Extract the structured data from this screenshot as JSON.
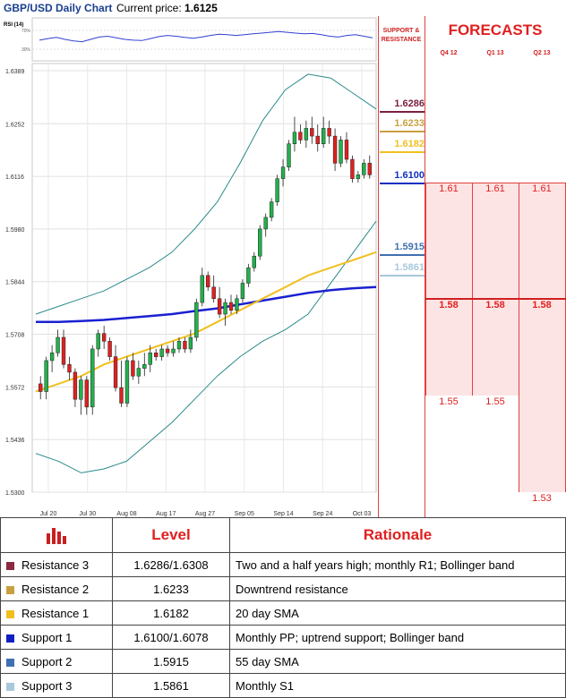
{
  "header": {
    "title": "GBP/USD Daily Chart",
    "price_label": "Current price:",
    "price_value": "1.6125"
  },
  "chart_data": {
    "type": "candlestick",
    "ylim": [
      1.53,
      1.6389
    ],
    "y_ticks": [
      1.6389,
      1.6252,
      1.6116,
      1.598,
      1.5844,
      1.5708,
      1.5572,
      1.5436,
      1.53
    ],
    "y_tick_labels": [
      "1.6389",
      "1.6252",
      "1.6116",
      "1.5980",
      "1.5844",
      "1.5708",
      "1.5572",
      "1.5436",
      "1.5300"
    ],
    "x_tick_labels": [
      "Jul 20",
      "Jul 30",
      "Aug 08",
      "Aug 17",
      "Aug 27",
      "Sep 05",
      "Sep 14",
      "Sep 24",
      "Oct 03"
    ],
    "rsi_label": "RSI (14)",
    "rsi_ticks": [
      "70%",
      "30%"
    ],
    "candles": [
      [
        1.558,
        1.56,
        1.554,
        1.556
      ],
      [
        1.556,
        1.565,
        1.554,
        1.564
      ],
      [
        1.564,
        1.568,
        1.561,
        1.566
      ],
      [
        1.566,
        1.572,
        1.565,
        1.57
      ],
      [
        1.57,
        1.572,
        1.562,
        1.563
      ],
      [
        1.563,
        1.565,
        1.559,
        1.561
      ],
      [
        1.561,
        1.562,
        1.552,
        1.554
      ],
      [
        1.554,
        1.56,
        1.55,
        1.559
      ],
      [
        1.559,
        1.56,
        1.55,
        1.552
      ],
      [
        1.552,
        1.568,
        1.55,
        1.567
      ],
      [
        1.567,
        1.572,
        1.565,
        1.571
      ],
      [
        1.571,
        1.573,
        1.567,
        1.569
      ],
      [
        1.569,
        1.57,
        1.564,
        1.565
      ],
      [
        1.565,
        1.568,
        1.556,
        1.557
      ],
      [
        1.557,
        1.564,
        1.552,
        1.553
      ],
      [
        1.553,
        1.565,
        1.552,
        1.564
      ],
      [
        1.564,
        1.566,
        1.559,
        1.56
      ],
      [
        1.56,
        1.564,
        1.558,
        1.562
      ],
      [
        1.562,
        1.566,
        1.56,
        1.563
      ],
      [
        1.563,
        1.568,
        1.561,
        1.566
      ],
      [
        1.566,
        1.567,
        1.564,
        1.565
      ],
      [
        1.565,
        1.568,
        1.564,
        1.567
      ],
      [
        1.567,
        1.568,
        1.565,
        1.566
      ],
      [
        1.566,
        1.569,
        1.565,
        1.567
      ],
      [
        1.567,
        1.57,
        1.566,
        1.569
      ],
      [
        1.569,
        1.57,
        1.566,
        1.567
      ],
      [
        1.567,
        1.572,
        1.566,
        1.57
      ],
      [
        1.57,
        1.58,
        1.569,
        1.579
      ],
      [
        1.579,
        1.588,
        1.578,
        1.586
      ],
      [
        1.586,
        1.587,
        1.582,
        1.583
      ],
      [
        1.583,
        1.586,
        1.579,
        1.58
      ],
      [
        1.58,
        1.583,
        1.575,
        1.576
      ],
      [
        1.576,
        1.58,
        1.573,
        1.579
      ],
      [
        1.579,
        1.581,
        1.576,
        1.577
      ],
      [
        1.577,
        1.581,
        1.576,
        1.58
      ],
      [
        1.58,
        1.585,
        1.579,
        1.584
      ],
      [
        1.584,
        1.589,
        1.583,
        1.588
      ],
      [
        1.588,
        1.592,
        1.587,
        1.591
      ],
      [
        1.591,
        1.599,
        1.59,
        1.598
      ],
      [
        1.598,
        1.602,
        1.596,
        1.601
      ],
      [
        1.601,
        1.606,
        1.6,
        1.605
      ],
      [
        1.605,
        1.612,
        1.604,
        1.611
      ],
      [
        1.611,
        1.616,
        1.609,
        1.614
      ],
      [
        1.614,
        1.621,
        1.613,
        1.62
      ],
      [
        1.62,
        1.627,
        1.618,
        1.623
      ],
      [
        1.623,
        1.625,
        1.62,
        1.621
      ],
      [
        1.621,
        1.626,
        1.619,
        1.624
      ],
      [
        1.624,
        1.627,
        1.62,
        1.622
      ],
      [
        1.622,
        1.625,
        1.618,
        1.62
      ],
      [
        1.62,
        1.627,
        1.619,
        1.624
      ],
      [
        1.624,
        1.626,
        1.62,
        1.622
      ],
      [
        1.622,
        1.624,
        1.613,
        1.615
      ],
      [
        1.615,
        1.622,
        1.614,
        1.621
      ],
      [
        1.621,
        1.623,
        1.615,
        1.616
      ],
      [
        1.616,
        1.617,
        1.61,
        1.611
      ],
      [
        1.611,
        1.613,
        1.61,
        1.612
      ],
      [
        1.612,
        1.616,
        1.611,
        1.615
      ],
      [
        1.615,
        1.617,
        1.611,
        1.612
      ]
    ],
    "sma20": [
      1.556,
      1.558,
      1.56,
      1.563,
      1.565,
      1.567,
      1.569,
      1.571,
      1.574,
      1.577,
      1.58,
      1.583,
      1.586,
      1.588,
      1.59,
      1.592
    ],
    "sma55": [
      1.574,
      1.574,
      1.5742,
      1.5745,
      1.575,
      1.5755,
      1.576,
      1.5768,
      1.5775,
      1.5785,
      1.5795,
      1.5805,
      1.5815,
      1.5822,
      1.5827,
      1.583
    ],
    "boll_upper": [
      1.576,
      1.578,
      1.58,
      1.582,
      1.585,
      1.588,
      1.592,
      1.598,
      1.605,
      1.615,
      1.626,
      1.634,
      1.638,
      1.637,
      1.633,
      1.629
    ],
    "boll_lower": [
      1.54,
      1.538,
      1.535,
      1.536,
      1.538,
      1.543,
      1.548,
      1.554,
      1.56,
      1.565,
      1.569,
      1.572,
      1.576,
      1.584,
      1.592,
      1.6
    ]
  },
  "sr": {
    "header": [
      "SUPPORT &",
      "RESISTANCE"
    ],
    "levels": [
      {
        "label": "1.6286",
        "value": 1.6286,
        "color": "#7a2040"
      },
      {
        "label": "1.6233",
        "value": 1.6233,
        "color": "#c8a040"
      },
      {
        "label": "1.6182",
        "value": 1.6182,
        "color": "#f0c020"
      },
      {
        "label": "1.6100",
        "value": 1.61,
        "color": "#1030c0"
      },
      {
        "label": "1.5915",
        "value": 1.5915,
        "color": "#4070b0"
      },
      {
        "label": "1.5861",
        "value": 1.5861,
        "color": "#a8c8dc"
      }
    ]
  },
  "forecasts": {
    "title": "FORECASTS",
    "quarters": [
      "Q4 12",
      "Q1 13",
      "Q2 13"
    ],
    "columns": [
      {
        "values": [
          "1.61",
          "1.58",
          "1.55"
        ],
        "bottom": 1.555
      },
      {
        "values": [
          "1.61",
          "1.58",
          "1.55"
        ],
        "bottom": 1.555
      },
      {
        "values": [
          "1.61",
          "1.58",
          "1.53"
        ],
        "bottom": 1.53
      }
    ]
  },
  "table": {
    "level_header": "Level",
    "rationale_header": "Rationale",
    "rows": [
      {
        "name": "Resistance 3",
        "level": "1.6286/1.6308",
        "rationale": "Two and a half years high; monthly R1; Bollinger band",
        "color": "#8b2a40"
      },
      {
        "name": "Resistance 2",
        "level": "1.6233",
        "rationale": "Downtrend resistance",
        "color": "#c8a040"
      },
      {
        "name": "Resistance 1",
        "level": "1.6182",
        "rationale": "20 day SMA",
        "color": "#f0c020"
      },
      {
        "name": "Support 1",
        "level": "1.6100/1.6078",
        "rationale": "Monthly PP; uptrend support; Bollinger band",
        "color": "#1020c0"
      },
      {
        "name": "Support 2",
        "level": "1.5915",
        "rationale": "55 day SMA",
        "color": "#4070b0"
      },
      {
        "name": "Support 3",
        "level": "1.5861",
        "rationale": "Monthly S1",
        "color": "#a8c8dc"
      }
    ]
  }
}
